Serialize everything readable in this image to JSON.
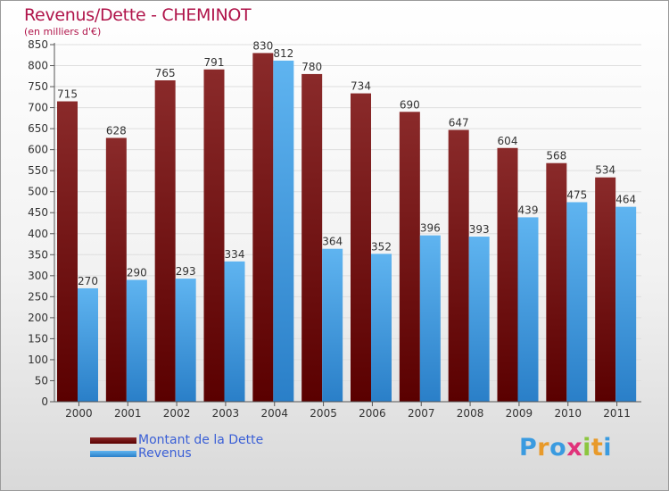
{
  "chart_data": {
    "type": "bar",
    "title": "Revenus/Dette - CHEMINOT",
    "subtitle": "(en milliers d'€)",
    "categories": [
      "2000",
      "2001",
      "2002",
      "2003",
      "2004",
      "2005",
      "2006",
      "2007",
      "2008",
      "2009",
      "2010",
      "2011"
    ],
    "series": [
      {
        "name": "Montant de la Dette",
        "values": [
          715,
          628,
          765,
          791,
          830,
          780,
          734,
          690,
          647,
          604,
          568,
          534
        ],
        "color": "#7a1414"
      },
      {
        "name": "Revenus",
        "values": [
          270,
          290,
          293,
          334,
          812,
          364,
          352,
          396,
          393,
          439,
          475,
          464
        ],
        "color": "#4aa3e8"
      }
    ],
    "ylim": [
      0,
      850
    ],
    "yticks": [
      0,
      50,
      100,
      150,
      200,
      250,
      300,
      350,
      400,
      450,
      500,
      550,
      600,
      650,
      700,
      750,
      800,
      850
    ],
    "grid": true,
    "legend": "bottom-left"
  },
  "logo": {
    "letters": [
      "P",
      "r",
      "o",
      "x",
      "i",
      "t",
      "i"
    ],
    "colors": [
      "#3a9be0",
      "#e89a2a",
      "#3a9be0",
      "#e0327a",
      "#8cc63f",
      "#e89a2a",
      "#3a9be0"
    ]
  }
}
